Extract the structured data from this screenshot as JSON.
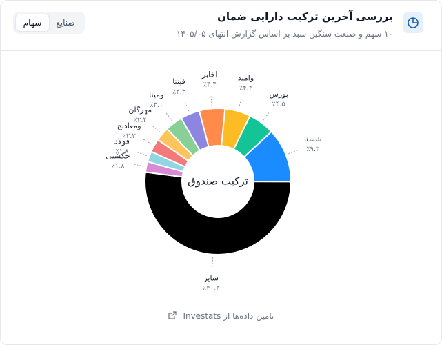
{
  "header": {
    "title": "بررسی آخرین ترکیب دارایی ضمان",
    "subtitle": "۱۰ سهم و صنعت سنگین سبد بر اساس گزارش انتهای ۱۴۰۵/۰۵"
  },
  "tabs": [
    "سهام",
    "صنایع"
  ],
  "footer": "تامین داده‌ها از Investats",
  "chart_data": {
    "type": "donut",
    "center_label": "ترکیب صندوق",
    "categories": [
      "شستا",
      "سایر",
      "حکشتی",
      "فولاد",
      "ومعادنح",
      "مهرگان",
      "ومپنا",
      "فینتا",
      "اخابر",
      "وامید",
      "بورس"
    ],
    "values": [
      9.3,
      40.3,
      1.8,
      1.8,
      2.3,
      2.4,
      3.0,
      3.3,
      4.4,
      4.4,
      4.5
    ],
    "value_labels": [
      "٪۹.۳",
      "٪۴۰.۳",
      "٪۱.۸",
      "٪۱.۸",
      "٪۲.۳",
      "٪۲.۴",
      "٪۳.۰",
      "٪۳.۳",
      "٪۴.۴",
      "٪۴.۴",
      "٪۴.۵"
    ],
    "colors": [
      "#1a8cff",
      "#000000",
      "#d98ad6",
      "#8fd6e2",
      "#f47a7a",
      "#fcc55c",
      "#88cf98",
      "#8c86e0",
      "#ff8a4a",
      "#fbbd23",
      "#13c497"
    ]
  }
}
